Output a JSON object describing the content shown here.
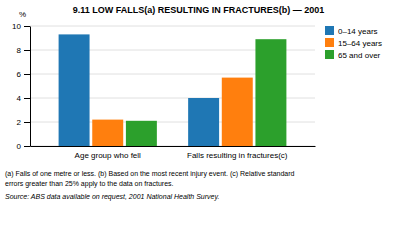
{
  "chart_data": {
    "type": "bar",
    "title": "9.11  LOW FALLS(a) RESULTING IN FRACTURES(b) — 2001",
    "categories": [
      "Age group who fell",
      "Falls resulting in fractures(c)"
    ],
    "series": [
      {
        "name": "0–14 years",
        "values": [
          9.3,
          4.0
        ]
      },
      {
        "name": "15–64 years",
        "values": [
          2.2,
          5.7
        ]
      },
      {
        "name": "65 and over",
        "values": [
          2.1,
          8.9
        ]
      }
    ],
    "ylabel": "%",
    "ylim": [
      0,
      10
    ],
    "yticks": [
      0,
      2,
      4,
      6,
      8,
      10
    ],
    "grid": true,
    "legend": "upper right",
    "annotations": [
      "(a) Falls of one metre or less. (b) Based on the most recent injury event. (c) Relative standard",
      "errors greater than 25% apply to the data on fractures.",
      "Source: ABS data available on request, 2001 National Health Survey."
    ]
  }
}
